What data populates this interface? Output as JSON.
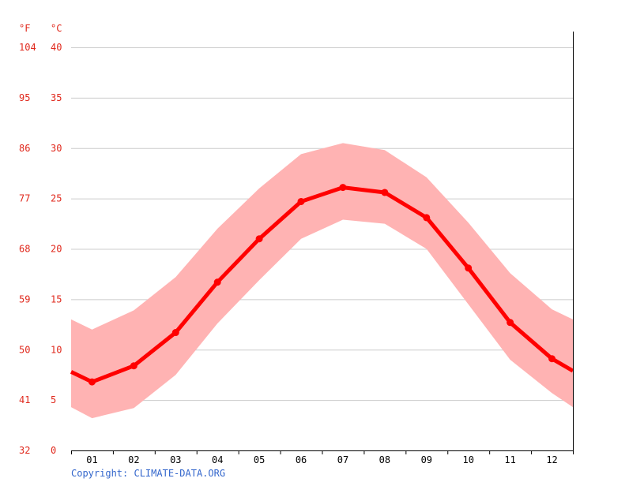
{
  "chart_data": {
    "type": "line",
    "unit_labels": {
      "fahrenheit": "°F",
      "celsius": "°C"
    },
    "y_ticks_celsius": [
      "0",
      "5",
      "10",
      "15",
      "20",
      "25",
      "30",
      "35",
      "40"
    ],
    "y_ticks_fahrenheit": [
      "32",
      "41",
      "50",
      "59",
      "68",
      "77",
      "86",
      "95",
      "104"
    ],
    "ylim": [
      0,
      40
    ],
    "categories": [
      "01",
      "02",
      "03",
      "04",
      "05",
      "06",
      "07",
      "08",
      "09",
      "10",
      "11",
      "12"
    ],
    "series": [
      {
        "values": [
          6.8,
          8.4,
          11.7,
          16.7,
          21.0,
          24.7,
          26.1,
          25.6,
          23.1,
          18.1,
          12.7,
          9.1
        ]
      }
    ],
    "range_band": {
      "upper": [
        12.0,
        13.9,
        17.2,
        22.0,
        26.0,
        29.4,
        30.5,
        29.8,
        27.1,
        22.6,
        17.6,
        14.0
      ],
      "lower": [
        3.2,
        4.2,
        7.5,
        12.6,
        16.9,
        21.0,
        22.9,
        22.5,
        20.0,
        14.5,
        9.0,
        5.7
      ]
    },
    "edge_values": {
      "start": {
        "mean": 7.8,
        "upper": 13.0,
        "lower": 4.3
      },
      "end": {
        "mean": 7.9,
        "upper": 13.0,
        "lower": 4.3
      }
    },
    "grid": true,
    "colors": {
      "line": "#ff0000",
      "band": "#ffb3b3",
      "grid": "#cccccc",
      "axis_text": "#e0281c",
      "tick_text": "#000000",
      "axis": "#000000"
    }
  },
  "footer": {
    "copyright": "Copyright: CLIMATE-DATA.ORG"
  }
}
